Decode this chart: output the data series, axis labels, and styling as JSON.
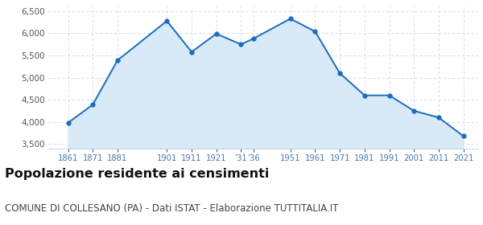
{
  "years": [
    1861,
    1871,
    1881,
    1901,
    1911,
    1921,
    1931,
    1936,
    1951,
    1961,
    1971,
    1981,
    1991,
    2001,
    2011,
    2021
  ],
  "population": [
    3980,
    4390,
    5390,
    6280,
    5580,
    5990,
    5750,
    5880,
    6330,
    6040,
    5100,
    4600,
    4600,
    4250,
    4100,
    3680
  ],
  "ylim": [
    3400,
    6600
  ],
  "yticks": [
    3500,
    4000,
    4500,
    5000,
    5500,
    6000,
    6500
  ],
  "line_color": "#1b6bbf",
  "fill_color": "#d8eaf7",
  "marker_color": "#1b6bbf",
  "grid_color": "#c8d8e8",
  "bg_color": "#ffffff",
  "title": "Popolazione residente ai censimenti",
  "subtitle": "COMUNE DI COLLESANO (PA) - Dati ISTAT - Elaborazione TUTTITALIA.IT",
  "title_fontsize": 11.5,
  "subtitle_fontsize": 8.5,
  "tick_label_color": "#4477aa",
  "ytick_label_color": "#555555"
}
